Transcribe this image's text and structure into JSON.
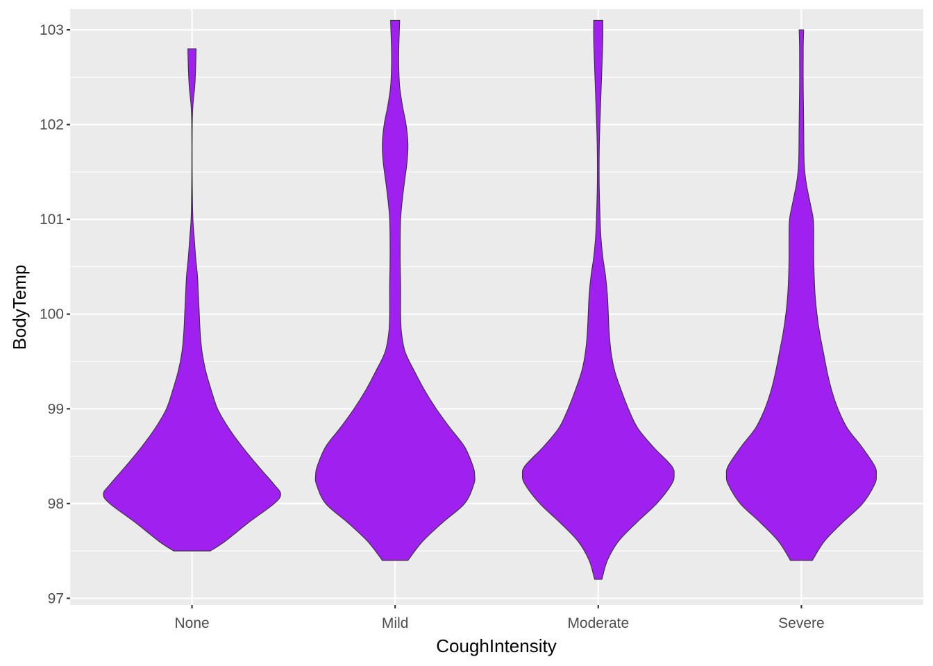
{
  "chart_data": {
    "type": "violin",
    "xlabel": "CoughIntensity",
    "ylabel": "BodyTemp",
    "categories": [
      "None",
      "Mild",
      "Moderate",
      "Severe"
    ],
    "ylim": [
      96.93,
      103.22
    ],
    "y_ticks": [
      97,
      98,
      99,
      100,
      101,
      102,
      103
    ],
    "y_minor_ticks": [
      97.5,
      98.5,
      99.5,
      100.5,
      101.5,
      102.5
    ],
    "grid": true,
    "legend": "none",
    "fill_color": "#A020F0",
    "outline_color": "#333333",
    "panel_background": "#EBEBEB",
    "grid_color": "#FFFFFF",
    "violins": [
      {
        "category": "None",
        "profile": [
          [
            97.5,
            0.2
          ],
          [
            97.6,
            0.36
          ],
          [
            97.8,
            0.62
          ],
          [
            98.0,
            0.9
          ],
          [
            98.1,
            0.97
          ],
          [
            98.2,
            0.9
          ],
          [
            98.4,
            0.72
          ],
          [
            98.6,
            0.55
          ],
          [
            98.8,
            0.4
          ],
          [
            99.0,
            0.28
          ],
          [
            99.2,
            0.21
          ],
          [
            99.4,
            0.15
          ],
          [
            99.6,
            0.11
          ],
          [
            99.8,
            0.09
          ],
          [
            100.0,
            0.08
          ],
          [
            100.2,
            0.07
          ],
          [
            100.4,
            0.06
          ],
          [
            100.6,
            0.04
          ],
          [
            100.8,
            0.025
          ],
          [
            101.0,
            0.01
          ],
          [
            101.3,
            0.004
          ],
          [
            101.6,
            0.002
          ],
          [
            102.0,
            0.003
          ],
          [
            102.2,
            0.01
          ],
          [
            102.4,
            0.03
          ],
          [
            102.6,
            0.04
          ],
          [
            102.8,
            0.045
          ]
        ]
      },
      {
        "category": "Mild",
        "profile": [
          [
            97.4,
            0.14
          ],
          [
            97.6,
            0.3
          ],
          [
            97.8,
            0.52
          ],
          [
            98.0,
            0.76
          ],
          [
            98.2,
            0.86
          ],
          [
            98.3,
            0.87
          ],
          [
            98.4,
            0.85
          ],
          [
            98.6,
            0.76
          ],
          [
            98.8,
            0.6
          ],
          [
            99.0,
            0.45
          ],
          [
            99.2,
            0.32
          ],
          [
            99.4,
            0.21
          ],
          [
            99.6,
            0.11
          ],
          [
            99.8,
            0.07
          ],
          [
            100.0,
            0.06
          ],
          [
            100.3,
            0.06
          ],
          [
            100.6,
            0.055
          ],
          [
            101.0,
            0.06
          ],
          [
            101.3,
            0.09
          ],
          [
            101.6,
            0.13
          ],
          [
            101.8,
            0.14
          ],
          [
            102.0,
            0.12
          ],
          [
            102.2,
            0.08
          ],
          [
            102.4,
            0.05
          ],
          [
            102.6,
            0.04
          ],
          [
            102.8,
            0.04
          ],
          [
            103.1,
            0.05
          ]
        ]
      },
      {
        "category": "Moderate",
        "profile": [
          [
            97.2,
            0.04
          ],
          [
            97.4,
            0.1
          ],
          [
            97.6,
            0.22
          ],
          [
            97.8,
            0.42
          ],
          [
            98.0,
            0.64
          ],
          [
            98.2,
            0.8
          ],
          [
            98.3,
            0.83
          ],
          [
            98.4,
            0.8
          ],
          [
            98.6,
            0.6
          ],
          [
            98.8,
            0.43
          ],
          [
            99.0,
            0.33
          ],
          [
            99.2,
            0.25
          ],
          [
            99.4,
            0.18
          ],
          [
            99.6,
            0.14
          ],
          [
            99.8,
            0.12
          ],
          [
            100.0,
            0.11
          ],
          [
            100.2,
            0.1
          ],
          [
            100.4,
            0.08
          ],
          [
            100.6,
            0.05
          ],
          [
            100.8,
            0.03
          ],
          [
            101.0,
            0.02
          ],
          [
            101.4,
            0.01
          ],
          [
            101.8,
            0.012
          ],
          [
            102.2,
            0.025
          ],
          [
            102.6,
            0.04
          ],
          [
            102.9,
            0.05
          ],
          [
            103.1,
            0.05
          ]
        ]
      },
      {
        "category": "Severe",
        "profile": [
          [
            97.4,
            0.12
          ],
          [
            97.6,
            0.25
          ],
          [
            97.8,
            0.45
          ],
          [
            98.0,
            0.67
          ],
          [
            98.2,
            0.8
          ],
          [
            98.3,
            0.82
          ],
          [
            98.4,
            0.8
          ],
          [
            98.6,
            0.66
          ],
          [
            98.8,
            0.5
          ],
          [
            99.0,
            0.4
          ],
          [
            99.2,
            0.33
          ],
          [
            99.4,
            0.28
          ],
          [
            99.6,
            0.24
          ],
          [
            99.8,
            0.2
          ],
          [
            100.0,
            0.17
          ],
          [
            100.2,
            0.15
          ],
          [
            100.4,
            0.14
          ],
          [
            100.6,
            0.135
          ],
          [
            100.8,
            0.135
          ],
          [
            101.0,
            0.13
          ],
          [
            101.2,
            0.09
          ],
          [
            101.4,
            0.05
          ],
          [
            101.6,
            0.03
          ],
          [
            102.0,
            0.025
          ],
          [
            102.4,
            0.02
          ],
          [
            102.8,
            0.02
          ],
          [
            103.0,
            0.025
          ]
        ]
      }
    ]
  }
}
